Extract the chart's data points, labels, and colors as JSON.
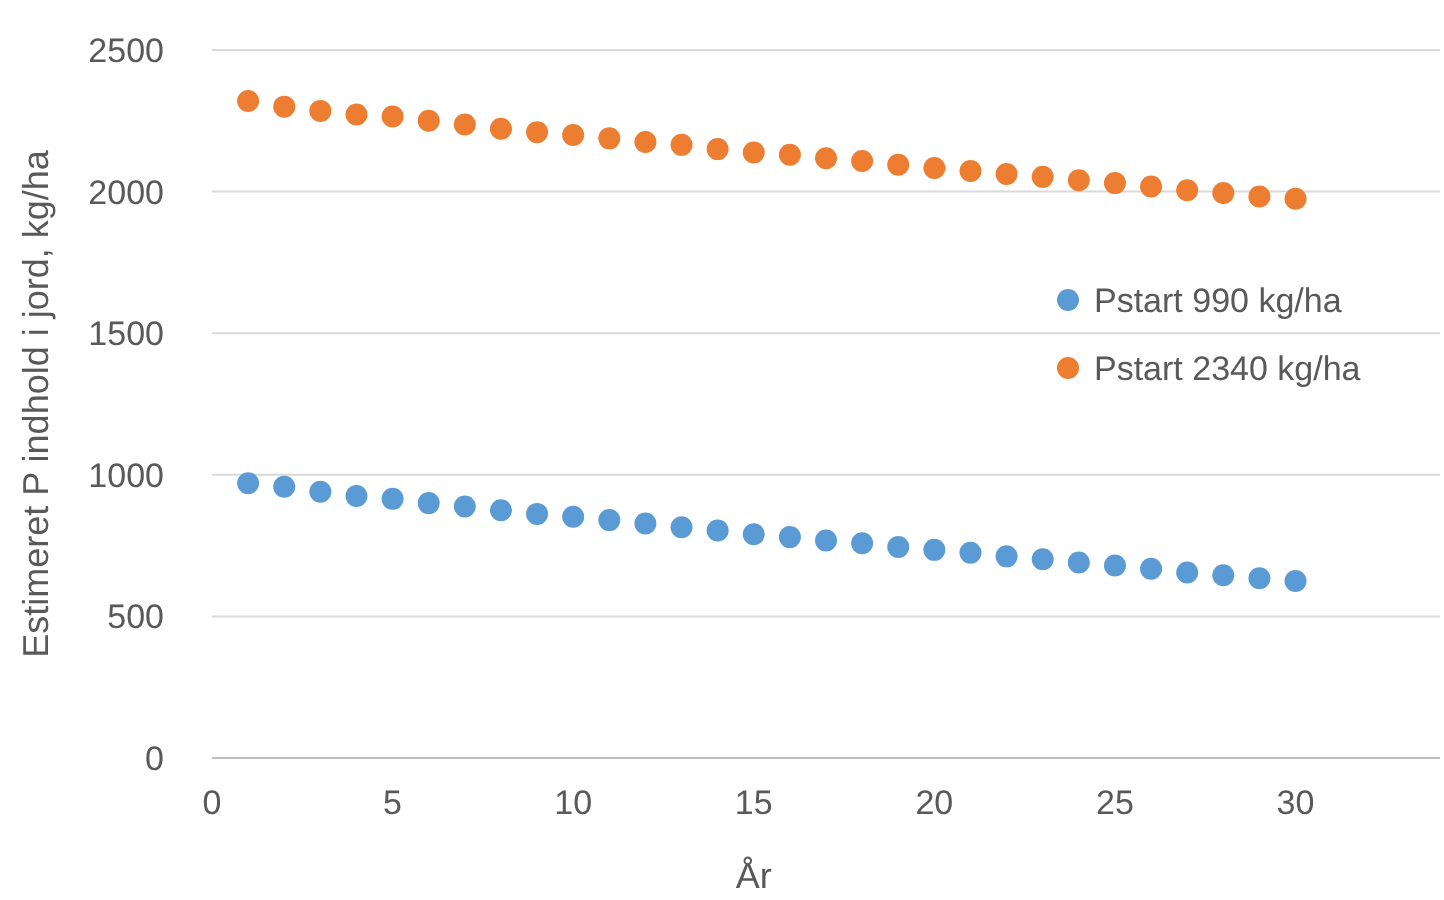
{
  "chart_data": {
    "type": "scatter",
    "xlabel": "År",
    "ylabel": "Estimeret P indhold i jord, kg/ha",
    "x": [
      1,
      2,
      3,
      4,
      5,
      6,
      7,
      8,
      9,
      10,
      11,
      12,
      13,
      14,
      15,
      16,
      17,
      18,
      19,
      20,
      21,
      22,
      23,
      24,
      25,
      26,
      27,
      28,
      29,
      30
    ],
    "series": [
      {
        "name": "Pstart 990 kg/ha",
        "color": "#5b9bd5",
        "values": [
          970,
          958,
          940,
          925,
          915,
          900,
          888,
          875,
          862,
          852,
          840,
          828,
          815,
          803,
          790,
          780,
          768,
          758,
          745,
          735,
          725,
          712,
          702,
          690,
          680,
          668,
          655,
          645,
          635,
          625
        ]
      },
      {
        "name": "Pstart 2340 kg/ha",
        "color": "#ed7d31",
        "values": [
          2320,
          2300,
          2285,
          2272,
          2265,
          2250,
          2237,
          2222,
          2210,
          2200,
          2188,
          2175,
          2165,
          2150,
          2138,
          2130,
          2118,
          2108,
          2095,
          2083,
          2073,
          2062,
          2052,
          2040,
          2030,
          2018,
          2005,
          1995,
          1983,
          1975
        ]
      }
    ],
    "xlim": [
      0,
      34
    ],
    "xticks": [
      0,
      5,
      10,
      15,
      20,
      25,
      30
    ],
    "ylim": [
      0,
      2500
    ],
    "yticks": [
      0,
      500,
      1000,
      1500,
      2000,
      2500
    ],
    "grid": "y",
    "legend": "right",
    "marker": "circle"
  }
}
